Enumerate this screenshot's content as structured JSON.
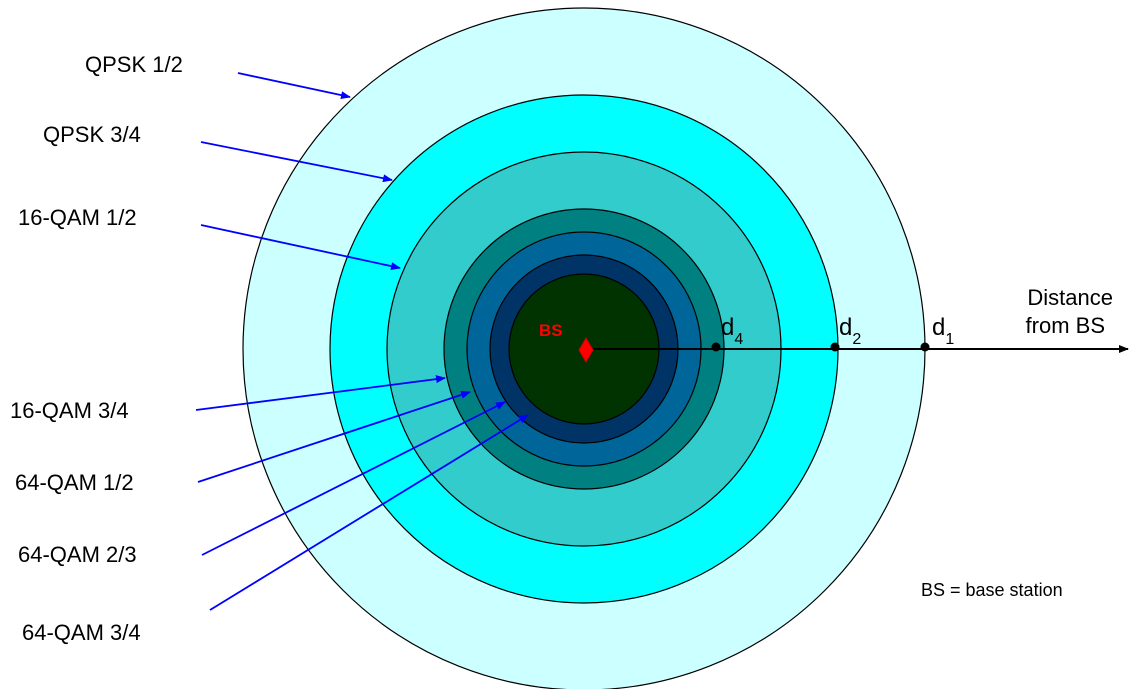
{
  "rings": [
    {
      "label": "QPSK 1/2",
      "color": "#ccffff"
    },
    {
      "label": "QPSK 3/4",
      "color": "#00ffff"
    },
    {
      "label": "16-QAM 1/2",
      "color": "#33cccc"
    },
    {
      "label": "16-QAM 3/4",
      "color": "#008080"
    },
    {
      "label": "64-QAM 1/2",
      "color": "#006699"
    },
    {
      "label": "64-QAM 2/3",
      "color": "#003366"
    },
    {
      "label": "64-QAM 3/4",
      "color": "#003300"
    }
  ],
  "base_station": {
    "label": "BS",
    "color": "#ff0000"
  },
  "distance_axis": {
    "title_line1": "Distance",
    "title_line2": "from BS",
    "markers": [
      {
        "base": "d",
        "sub": "4"
      },
      {
        "base": "d",
        "sub": "2"
      },
      {
        "base": "d",
        "sub": "1"
      }
    ]
  },
  "legend_note": "BS = base station",
  "colors": {
    "pointer": "#0000ff",
    "outline": "#000000"
  }
}
